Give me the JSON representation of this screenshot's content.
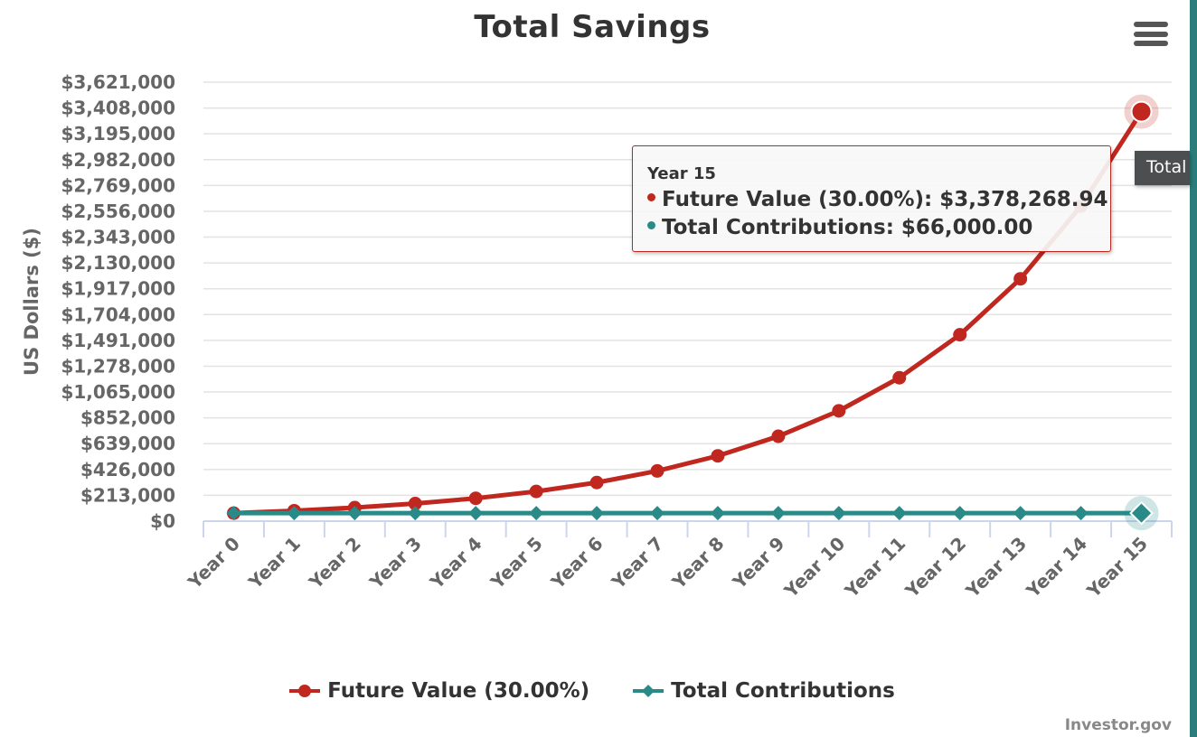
{
  "chart_data": {
    "type": "line",
    "title": "Total Savings",
    "xlabel": "",
    "ylabel": "US Dollars ($)",
    "categories": [
      "Year 0",
      "Year 1",
      "Year 2",
      "Year 3",
      "Year 4",
      "Year 5",
      "Year 6",
      "Year 7",
      "Year 8",
      "Year 9",
      "Year 10",
      "Year 11",
      "Year 12",
      "Year 13",
      "Year 14",
      "Year 15"
    ],
    "y_ticks": [
      "$0",
      "$213,000",
      "$426,000",
      "$639,000",
      "$852,000",
      "$1,065,000",
      "$1,278,000",
      "$1,491,000",
      "$1,704,000",
      "$1,917,000",
      "$2,130,000",
      "$2,343,000",
      "$2,556,000",
      "$2,769,000",
      "$2,982,000",
      "$3,195,000",
      "$3,408,000",
      "$3,621,000"
    ],
    "y_tick_values": [
      0,
      213000,
      426000,
      639000,
      852000,
      1065000,
      1278000,
      1491000,
      1704000,
      1917000,
      2130000,
      2343000,
      2556000,
      2769000,
      2982000,
      3195000,
      3408000,
      3621000
    ],
    "ylim": [
      0,
      3621000
    ],
    "grid": true,
    "legend_position": "bottom-center",
    "series": [
      {
        "name": "Future Value (30.00%)",
        "color": "#c0271f",
        "marker": "circle",
        "values": [
          66000,
          85800,
          111540,
          145002,
          188502.6,
          245053.38,
          318569.39,
          414140.21,
          538382.27,
          699896.95,
          909866.04,
          1182825.85,
          1537673.61,
          1998975.69,
          2598668.39,
          3378268.94
        ]
      },
      {
        "name": "Total Contributions",
        "color": "#2a8a88",
        "marker": "diamond",
        "values": [
          66000,
          66000,
          66000,
          66000,
          66000,
          66000,
          66000,
          66000,
          66000,
          66000,
          66000,
          66000,
          66000,
          66000,
          66000,
          66000
        ]
      }
    ],
    "highlighted_index": 15
  },
  "tooltip": {
    "header": "Year 15",
    "rows": [
      {
        "label": "Future Value (30.00%): $3,378,268.94",
        "color": "#c0271f"
      },
      {
        "label": "Total Contributions: $66,000.00",
        "color": "#2a8a88"
      }
    ]
  },
  "hover_tip": "Total",
  "menu_icon": "hamburger-menu-icon",
  "credit": "Investor.gov"
}
